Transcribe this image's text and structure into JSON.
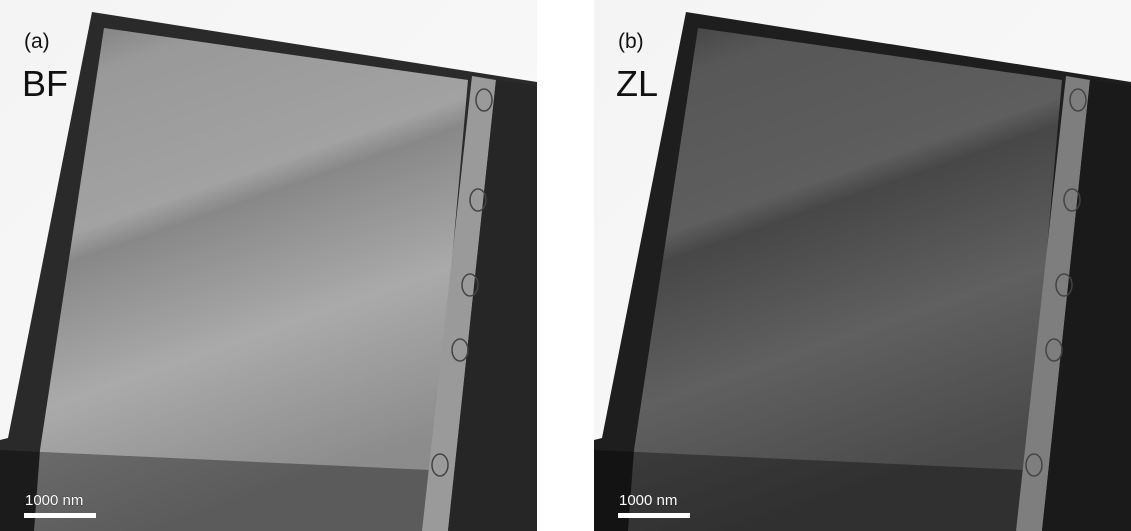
{
  "panels": [
    {
      "label": "(a)",
      "mode": "BF",
      "scale_bar": "1000 nm"
    },
    {
      "label": "(b)",
      "mode": "ZL",
      "scale_bar": "1000 nm"
    }
  ]
}
